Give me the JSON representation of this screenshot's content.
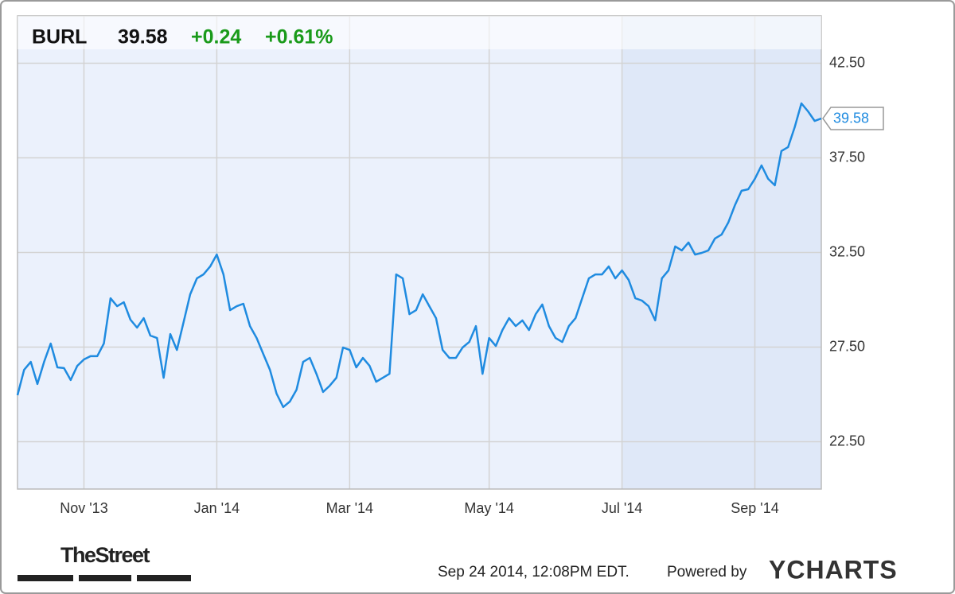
{
  "header": {
    "ticker": "BURL",
    "price": "39.58",
    "change": "+0.24",
    "change_pct": "+0.61%"
  },
  "footer": {
    "brand": "TheStreet",
    "timestamp": "Sep 24 2014, 12:08PM EDT.",
    "powered": "Powered by",
    "logo": "YCHARTS"
  },
  "chart_data": {
    "type": "line",
    "color": "#1f8be0",
    "grid": true,
    "ylim": [
      20,
      45
    ],
    "yticks": [
      {
        "value": 22.5,
        "label": "22.50"
      },
      {
        "value": 27.5,
        "label": "27.50"
      },
      {
        "value": 32.5,
        "label": "32.50"
      },
      {
        "value": 37.5,
        "label": "37.50"
      },
      {
        "value": 42.5,
        "label": "42.50"
      }
    ],
    "categories": [
      null,
      null,
      null,
      null,
      null,
      null,
      null,
      null,
      null,
      null,
      "Nov '13",
      null,
      null,
      null,
      null,
      null,
      null,
      null,
      null,
      null,
      null,
      null,
      null,
      null,
      null,
      null,
      null,
      null,
      null,
      null,
      "Jan '14",
      null,
      null,
      null,
      null,
      null,
      null,
      null,
      null,
      null,
      null,
      null,
      null,
      null,
      null,
      null,
      null,
      null,
      null,
      null,
      "Mar '14",
      null,
      null,
      null,
      null,
      null,
      null,
      null,
      null,
      null,
      null,
      null,
      null,
      null,
      null,
      null,
      null,
      null,
      null,
      null,
      null,
      "May '14",
      null,
      null,
      null,
      null,
      null,
      null,
      null,
      null,
      null,
      null,
      null,
      null,
      null,
      null,
      null,
      null,
      null,
      null,
      null,
      "Jul '14",
      null,
      null,
      null,
      null,
      null,
      null,
      null,
      null,
      null,
      null,
      null,
      null,
      null,
      null,
      null,
      null,
      null,
      null,
      null,
      "Sep '14",
      null,
      null,
      null,
      null,
      null,
      null,
      null,
      null,
      null,
      null
    ],
    "values": [
      24.96,
      26.3,
      26.72,
      25.55,
      26.72,
      27.69,
      26.43,
      26.39,
      25.76,
      26.51,
      26.85,
      27.02,
      27.02,
      27.69,
      30.08,
      29.66,
      29.87,
      28.95,
      28.53,
      29.03,
      28.11,
      27.98,
      25.88,
      28.19,
      27.35,
      28.82,
      30.29,
      31.13,
      31.34,
      31.76,
      32.39,
      31.34,
      29.45,
      29.66,
      29.79,
      28.61,
      27.98,
      27.14,
      26.3,
      25.04,
      24.33,
      24.62,
      25.25,
      26.72,
      26.93,
      26.09,
      25.13,
      25.46,
      25.88,
      27.48,
      27.35,
      26.43,
      26.93,
      26.51,
      25.67,
      25.88,
      26.09,
      31.34,
      31.13,
      29.24,
      29.45,
      30.29,
      29.66,
      29.03,
      27.35,
      26.93,
      26.93,
      27.48,
      27.77,
      28.61,
      26.09,
      27.98,
      27.56,
      28.4,
      29.03,
      28.61,
      28.91,
      28.4,
      29.24,
      29.75,
      28.61,
      27.98,
      27.77,
      28.61,
      29.03,
      30.08,
      31.13,
      31.34,
      31.34,
      31.76,
      31.13,
      31.55,
      31.05,
      30.08,
      29.96,
      29.66,
      28.91,
      31.13,
      31.55,
      32.82,
      32.61,
      33.03,
      32.39,
      32.48,
      32.61,
      33.24,
      33.45,
      34.08,
      35.0,
      35.76,
      35.84,
      36.39,
      37.1,
      36.39,
      36.05,
      37.86,
      38.07,
      39.12,
      40.38,
      39.96,
      39.45,
      39.58
    ]
  }
}
